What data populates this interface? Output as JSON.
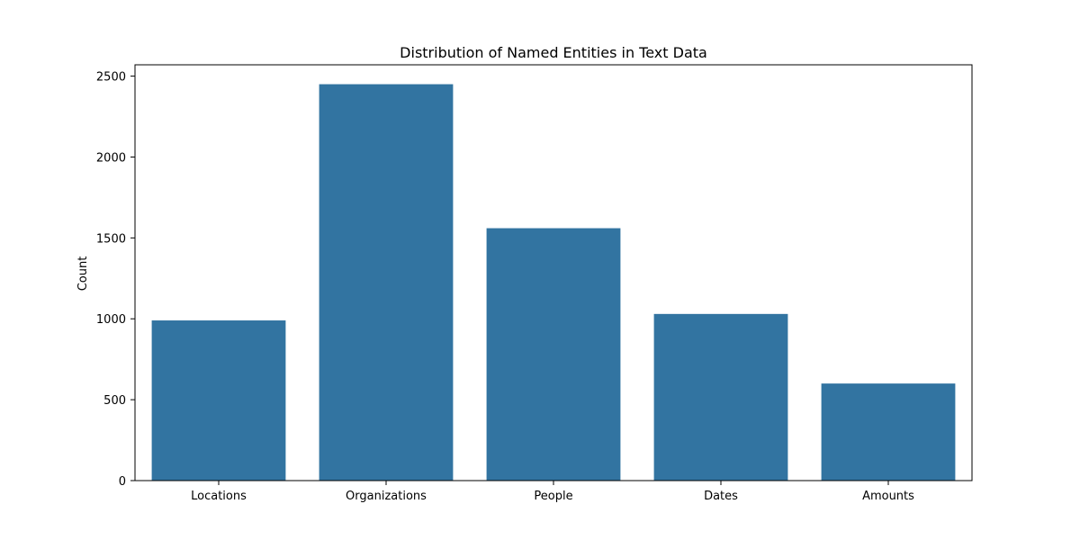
{
  "chart_data": {
    "type": "bar",
    "title": "Distribution of Named Entities in Text Data",
    "xlabel": "",
    "ylabel": "Count",
    "categories": [
      "Locations",
      "Organizations",
      "People",
      "Dates",
      "Amounts"
    ],
    "values": [
      990,
      2450,
      1560,
      1030,
      600
    ],
    "ylim": [
      0,
      2570
    ],
    "yticks": [
      0,
      500,
      1000,
      1500,
      2000,
      2500
    ],
    "bar_color": "#3274a1",
    "grid": false,
    "legend": "none"
  }
}
